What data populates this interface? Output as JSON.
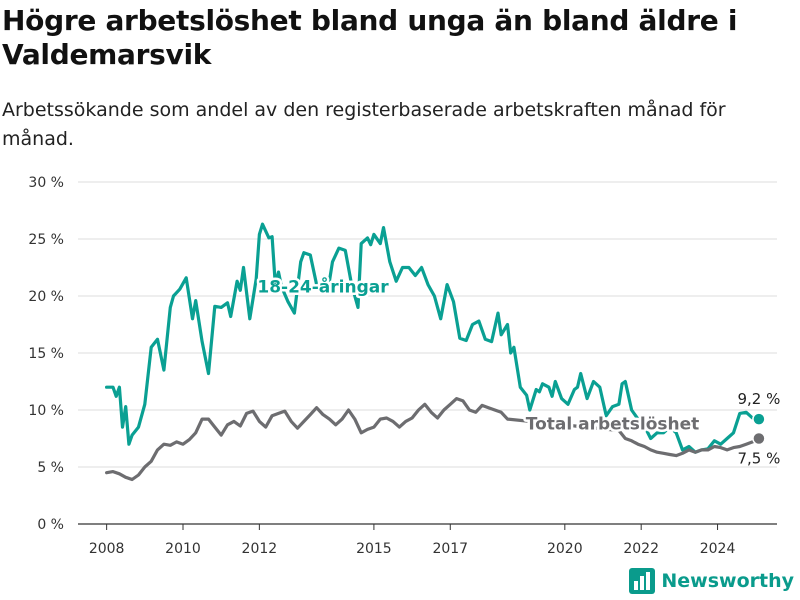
{
  "title": "Högre arbetslöshet bland unga än bland äldre i Valdemarsvik",
  "subtitle": "Arbetssökande som andel av den registerbaserade arbetskraften månad för månad.",
  "brand": "Newsworthy",
  "brand_icon": "bar-chart-icon",
  "colors": {
    "youth": "#0aa093",
    "total": "#6d6d70",
    "grid": "#dddddd",
    "brand": "#0a9b8c"
  },
  "chart_data": {
    "type": "line",
    "title": "Högre arbetslöshet bland unga än bland äldre i Valdemarsvik",
    "subtitle": "Arbetssökande som andel av den registerbaserade arbetskraften månad för månad.",
    "xlabel": "",
    "ylabel": "",
    "ylim": [
      0,
      30
    ],
    "yticks": [
      0,
      5,
      10,
      15,
      20,
      25,
      30
    ],
    "ytick_labels": [
      "0 %",
      "5 %",
      "10 %",
      "15 %",
      "20 %",
      "25 %",
      "30 %"
    ],
    "xlim": [
      "2007-04",
      "2025-08"
    ],
    "xticks": [
      {
        "date": "2008-01",
        "label": "2008"
      },
      {
        "date": "2010-01",
        "label": "2010"
      },
      {
        "date": "2012-01",
        "label": "2012"
      },
      {
        "date": "2015-01",
        "label": "2015"
      },
      {
        "date": "2017-01",
        "label": "2017"
      },
      {
        "date": "2020-01",
        "label": "2020"
      },
      {
        "date": "2022-01",
        "label": "2022"
      },
      {
        "date": "2024-01",
        "label": "2024"
      }
    ],
    "grid": true,
    "series": [
      {
        "name": "18-24-åringar",
        "label_anchor": {
          "date": "2013-09",
          "value": 20.3
        },
        "end_label": "9,2 %",
        "end_value": 9.2,
        "end_date": "2025-02",
        "points": [
          [
            "2008-01",
            12.0
          ],
          [
            "2008-03",
            12.0
          ],
          [
            "2008-04",
            11.2
          ],
          [
            "2008-05",
            12.0
          ],
          [
            "2008-06",
            8.5
          ],
          [
            "2008-07",
            10.3
          ],
          [
            "2008-08",
            7.0
          ],
          [
            "2008-09",
            7.8
          ],
          [
            "2008-11",
            8.5
          ],
          [
            "2009-01",
            10.5
          ],
          [
            "2009-03",
            15.5
          ],
          [
            "2009-05",
            16.2
          ],
          [
            "2009-07",
            13.5
          ],
          [
            "2009-09",
            19.0
          ],
          [
            "2009-10",
            20.0
          ],
          [
            "2009-12",
            20.6
          ],
          [
            "2010-02",
            21.6
          ],
          [
            "2010-04",
            18.0
          ],
          [
            "2010-05",
            19.6
          ],
          [
            "2010-07",
            16.0
          ],
          [
            "2010-09",
            13.2
          ],
          [
            "2010-11",
            19.1
          ],
          [
            "2011-01",
            19.0
          ],
          [
            "2011-03",
            19.4
          ],
          [
            "2011-04",
            18.2
          ],
          [
            "2011-06",
            21.3
          ],
          [
            "2011-07",
            20.5
          ],
          [
            "2011-08",
            22.5
          ],
          [
            "2011-10",
            18.0
          ],
          [
            "2011-12",
            21.5
          ],
          [
            "2012-01",
            25.4
          ],
          [
            "2012-02",
            26.3
          ],
          [
            "2012-04",
            25.1
          ],
          [
            "2012-05",
            25.2
          ],
          [
            "2012-06",
            21.0
          ],
          [
            "2012-07",
            22.1
          ],
          [
            "2012-08",
            20.8
          ],
          [
            "2012-10",
            19.5
          ],
          [
            "2012-12",
            18.5
          ],
          [
            "2013-02",
            23.0
          ],
          [
            "2013-03",
            23.8
          ],
          [
            "2013-05",
            23.6
          ],
          [
            "2013-07",
            21.0
          ],
          [
            "2013-09",
            20.8
          ],
          [
            "2013-11",
            21.3
          ],
          [
            "2013-12",
            23.0
          ],
          [
            "2014-02",
            24.2
          ],
          [
            "2014-04",
            24.0
          ],
          [
            "2014-06",
            21.0
          ],
          [
            "2014-08",
            19.0
          ],
          [
            "2014-09",
            24.6
          ],
          [
            "2014-11",
            25.1
          ],
          [
            "2014-12",
            24.5
          ],
          [
            "2015-01",
            25.4
          ],
          [
            "2015-03",
            24.6
          ],
          [
            "2015-04",
            26.0
          ],
          [
            "2015-06",
            23.0
          ],
          [
            "2015-08",
            21.3
          ],
          [
            "2015-10",
            22.5
          ],
          [
            "2015-12",
            22.5
          ],
          [
            "2016-02",
            21.8
          ],
          [
            "2016-04",
            22.5
          ],
          [
            "2016-06",
            21.0
          ],
          [
            "2016-08",
            20.0
          ],
          [
            "2016-10",
            18.0
          ],
          [
            "2016-12",
            21.0
          ],
          [
            "2017-02",
            19.5
          ],
          [
            "2017-04",
            16.3
          ],
          [
            "2017-06",
            16.1
          ],
          [
            "2017-08",
            17.5
          ],
          [
            "2017-10",
            17.8
          ],
          [
            "2017-12",
            16.2
          ],
          [
            "2018-02",
            16.0
          ],
          [
            "2018-04",
            18.5
          ],
          [
            "2018-05",
            16.6
          ],
          [
            "2018-07",
            17.5
          ],
          [
            "2018-08",
            15.0
          ],
          [
            "2018-09",
            15.5
          ],
          [
            "2018-11",
            12.0
          ],
          [
            "2019-01",
            11.3
          ],
          [
            "2019-02",
            10.0
          ],
          [
            "2019-04",
            11.8
          ],
          [
            "2019-05",
            11.6
          ],
          [
            "2019-06",
            12.3
          ],
          [
            "2019-08",
            12.0
          ],
          [
            "2019-09",
            11.2
          ],
          [
            "2019-10",
            12.5
          ],
          [
            "2019-12",
            11.0
          ],
          [
            "2020-02",
            10.5
          ],
          [
            "2020-04",
            11.8
          ],
          [
            "2020-05",
            12.0
          ],
          [
            "2020-06",
            13.2
          ],
          [
            "2020-08",
            11.0
          ],
          [
            "2020-10",
            12.5
          ],
          [
            "2020-12",
            12.0
          ],
          [
            "2021-02",
            9.5
          ],
          [
            "2021-04",
            10.3
          ],
          [
            "2021-06",
            10.5
          ],
          [
            "2021-07",
            12.3
          ],
          [
            "2021-08",
            12.5
          ],
          [
            "2021-10",
            10.0
          ],
          [
            "2021-12",
            9.2
          ],
          [
            "2022-02",
            8.6
          ],
          [
            "2022-04",
            7.5
          ],
          [
            "2022-06",
            8.0
          ],
          [
            "2022-08",
            8.0
          ],
          [
            "2022-10",
            8.5
          ],
          [
            "2022-12",
            8.0
          ],
          [
            "2023-02",
            6.5
          ],
          [
            "2023-04",
            6.8
          ],
          [
            "2023-06",
            6.3
          ],
          [
            "2023-08",
            6.5
          ],
          [
            "2023-10",
            6.6
          ],
          [
            "2023-12",
            7.3
          ],
          [
            "2024-02",
            7.0
          ],
          [
            "2024-04",
            7.5
          ],
          [
            "2024-06",
            8.0
          ],
          [
            "2024-08",
            9.7
          ],
          [
            "2024-10",
            9.8
          ],
          [
            "2024-12",
            9.3
          ],
          [
            "2025-02",
            9.2
          ]
        ]
      },
      {
        "name": "Total arbetslöshet",
        "label_anchor": {
          "date": "2021-04",
          "value": 8.3
        },
        "end_label": "7,5 %",
        "end_value": 7.5,
        "end_date": "2025-02",
        "points": [
          [
            "2008-01",
            4.5
          ],
          [
            "2008-03",
            4.6
          ],
          [
            "2008-05",
            4.4
          ],
          [
            "2008-07",
            4.1
          ],
          [
            "2008-09",
            3.9
          ],
          [
            "2008-11",
            4.3
          ],
          [
            "2009-01",
            5.0
          ],
          [
            "2009-03",
            5.5
          ],
          [
            "2009-05",
            6.5
          ],
          [
            "2009-07",
            7.0
          ],
          [
            "2009-09",
            6.9
          ],
          [
            "2009-11",
            7.2
          ],
          [
            "2010-01",
            7.0
          ],
          [
            "2010-03",
            7.4
          ],
          [
            "2010-05",
            8.0
          ],
          [
            "2010-07",
            9.2
          ],
          [
            "2010-09",
            9.2
          ],
          [
            "2010-11",
            8.5
          ],
          [
            "2011-01",
            7.8
          ],
          [
            "2011-03",
            8.7
          ],
          [
            "2011-05",
            9.0
          ],
          [
            "2011-07",
            8.6
          ],
          [
            "2011-09",
            9.7
          ],
          [
            "2011-11",
            9.9
          ],
          [
            "2012-01",
            9.0
          ],
          [
            "2012-03",
            8.5
          ],
          [
            "2012-05",
            9.5
          ],
          [
            "2012-07",
            9.7
          ],
          [
            "2012-09",
            9.9
          ],
          [
            "2012-11",
            9.0
          ],
          [
            "2013-01",
            8.4
          ],
          [
            "2013-03",
            9.0
          ],
          [
            "2013-05",
            9.6
          ],
          [
            "2013-07",
            10.2
          ],
          [
            "2013-09",
            9.6
          ],
          [
            "2013-11",
            9.2
          ],
          [
            "2014-01",
            8.7
          ],
          [
            "2014-03",
            9.2
          ],
          [
            "2014-05",
            10.0
          ],
          [
            "2014-07",
            9.2
          ],
          [
            "2014-09",
            8.0
          ],
          [
            "2014-11",
            8.3
          ],
          [
            "2015-01",
            8.5
          ],
          [
            "2015-03",
            9.2
          ],
          [
            "2015-05",
            9.3
          ],
          [
            "2015-07",
            9.0
          ],
          [
            "2015-09",
            8.5
          ],
          [
            "2015-11",
            9.0
          ],
          [
            "2016-01",
            9.3
          ],
          [
            "2016-03",
            10.0
          ],
          [
            "2016-05",
            10.5
          ],
          [
            "2016-07",
            9.8
          ],
          [
            "2016-09",
            9.3
          ],
          [
            "2016-11",
            10.0
          ],
          [
            "2017-01",
            10.5
          ],
          [
            "2017-03",
            11.0
          ],
          [
            "2017-05",
            10.8
          ],
          [
            "2017-07",
            10.0
          ],
          [
            "2017-09",
            9.8
          ],
          [
            "2017-11",
            10.4
          ],
          [
            "2018-01",
            10.2
          ],
          [
            "2018-03",
            10.0
          ],
          [
            "2018-05",
            9.8
          ],
          [
            "2018-07",
            9.2
          ],
          [
            "2021-06",
            8.2
          ],
          [
            "2021-08",
            7.5
          ],
          [
            "2021-10",
            7.3
          ],
          [
            "2021-12",
            7.0
          ],
          [
            "2022-02",
            6.8
          ],
          [
            "2022-04",
            6.5
          ],
          [
            "2022-06",
            6.3
          ],
          [
            "2022-08",
            6.2
          ],
          [
            "2022-10",
            6.1
          ],
          [
            "2022-12",
            6.0
          ],
          [
            "2023-02",
            6.2
          ],
          [
            "2023-04",
            6.5
          ],
          [
            "2023-06",
            6.3
          ],
          [
            "2023-08",
            6.5
          ],
          [
            "2023-10",
            6.5
          ],
          [
            "2023-12",
            6.8
          ],
          [
            "2024-02",
            6.7
          ],
          [
            "2024-04",
            6.5
          ],
          [
            "2024-06",
            6.7
          ],
          [
            "2024-08",
            6.8
          ],
          [
            "2024-10",
            7.0
          ],
          [
            "2024-12",
            7.2
          ],
          [
            "2025-02",
            7.5
          ]
        ]
      }
    ]
  }
}
